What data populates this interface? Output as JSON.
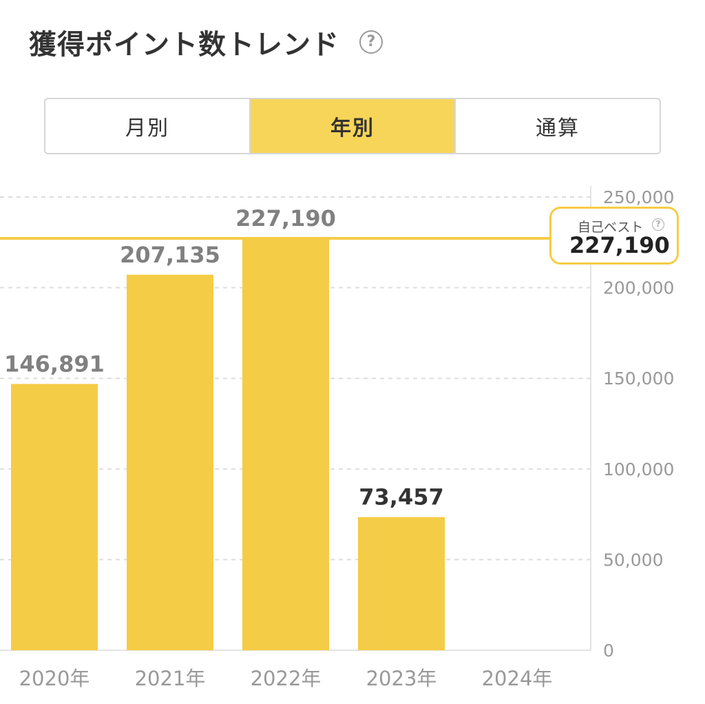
{
  "header": {
    "title": "獲得ポイント数トレンド",
    "help_glyph": "?"
  },
  "tabs": [
    {
      "label": "月別",
      "active": false
    },
    {
      "label": "年別",
      "active": true
    },
    {
      "label": "通算",
      "active": false
    }
  ],
  "best": {
    "label": "自己ベスト",
    "value": "227,190",
    "help_glyph": "?"
  },
  "colors": {
    "bar": "#f5cc45",
    "tab_active": "#f7d558",
    "best_line": "#f5cc45",
    "value_label_past": "#808080",
    "value_label_current": "#333333",
    "axis_text": "#999999",
    "grid": "#dddddd"
  },
  "chart_data": {
    "type": "bar",
    "categories": [
      "2020年",
      "2021年",
      "2022年",
      "2023年",
      "2024年"
    ],
    "values": [
      146891,
      207135,
      227190,
      73457,
      null
    ],
    "value_labels": [
      "146,891",
      "207,135",
      "227,190",
      "73,457",
      ""
    ],
    "highlighted_index": 3,
    "ylim": [
      0,
      250000
    ],
    "yticks": [
      0,
      50000,
      100000,
      150000,
      200000,
      250000
    ],
    "ytick_labels": [
      "0",
      "50,000",
      "100,000",
      "150,000",
      "200,000",
      "250,000"
    ],
    "y_axis_position": "right",
    "grid": true,
    "reference_line": {
      "value": 227190
    }
  }
}
